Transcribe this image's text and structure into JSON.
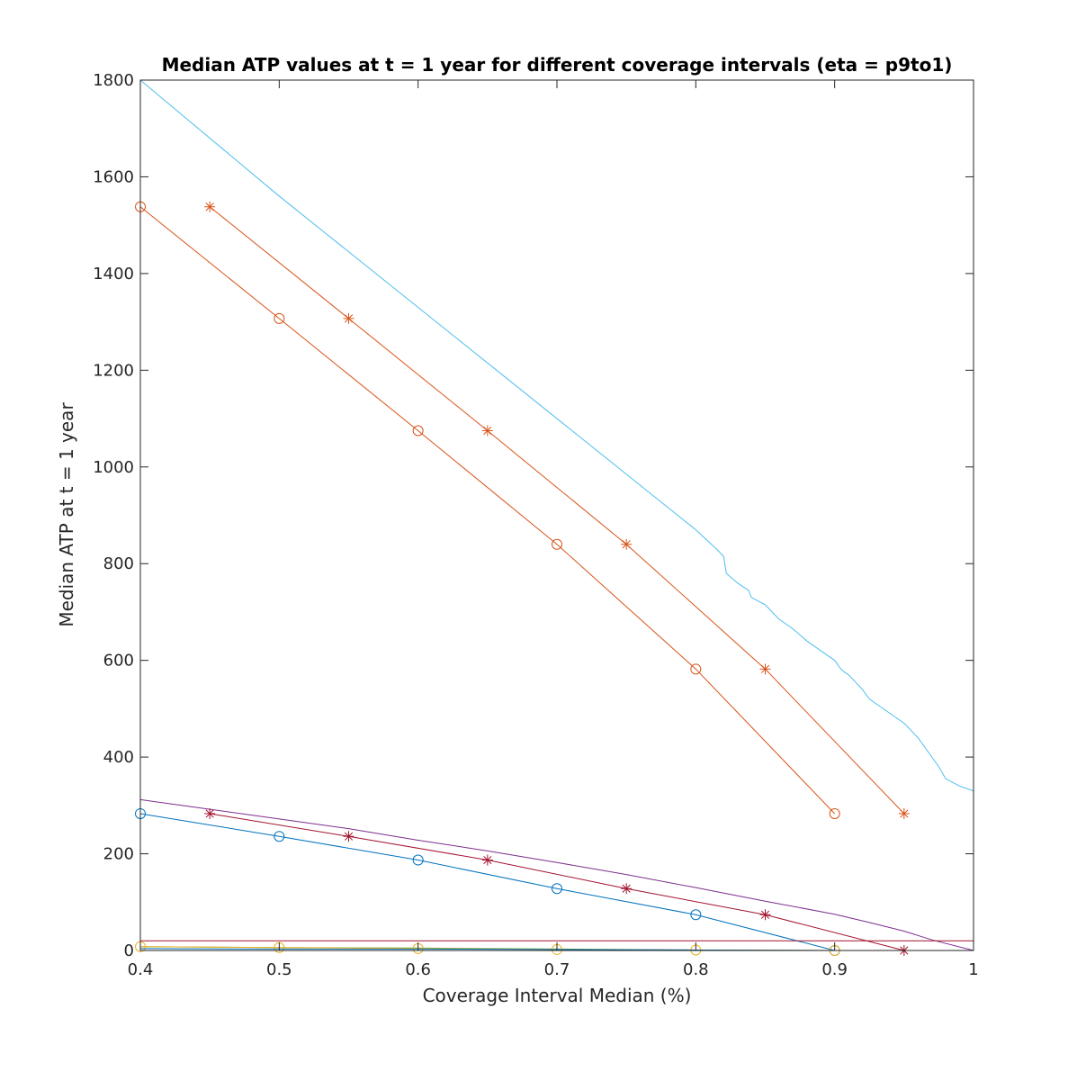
{
  "chart_data": {
    "type": "line",
    "title": "Median ATP values at t = 1 year for different coverage intervals (eta = p9to1)",
    "xlabel": "Coverage Interval Median (%)",
    "ylabel": "Median ATP at t = 1 year",
    "xlim": [
      0.4,
      1
    ],
    "ylim": [
      0,
      1800
    ],
    "xticks": [
      0.4,
      0.5,
      0.6,
      0.7,
      0.8,
      0.9,
      1
    ],
    "xtick_labels": [
      "0.4",
      "0.5",
      "0.6",
      "0.7",
      "0.8",
      "0.9",
      "1"
    ],
    "yticks": [
      0,
      200,
      400,
      600,
      800,
      1000,
      1200,
      1400,
      1600,
      1800
    ],
    "ytick_labels": [
      "0",
      "200",
      "400",
      "600",
      "800",
      "1000",
      "1200",
      "1400",
      "1600",
      "1800"
    ],
    "grid": false,
    "box": true,
    "series": [
      {
        "color": "#4DBEEE",
        "marker": "none",
        "x": [
          0.4,
          0.5,
          0.6,
          0.7,
          0.75,
          0.8,
          0.815,
          0.82,
          0.822,
          0.83,
          0.838,
          0.84,
          0.85,
          0.86,
          0.87,
          0.88,
          0.89,
          0.9,
          0.905,
          0.91,
          0.915,
          0.92,
          0.925,
          0.94,
          0.95,
          0.96,
          0.965,
          0.97,
          0.975,
          0.98,
          0.99,
          1.0
        ],
        "y": [
          1800,
          1560,
          1330,
          1100,
          985,
          870,
          830,
          815,
          780,
          760,
          745,
          730,
          715,
          685,
          665,
          640,
          620,
          600,
          580,
          570,
          555,
          540,
          520,
          490,
          470,
          440,
          420,
          400,
          380,
          355,
          340,
          330
        ]
      },
      {
        "color": "#D95319",
        "marker": "o",
        "x": [
          0.4,
          0.5,
          0.6,
          0.7,
          0.8,
          0.9
        ],
        "y": [
          1538,
          1307,
          1075,
          840,
          582,
          283
        ]
      },
      {
        "color": "#D95319",
        "marker": "*",
        "x": [
          0.45,
          0.55,
          0.65,
          0.75,
          0.85,
          0.95
        ],
        "y": [
          1538,
          1307,
          1075,
          840,
          582,
          283
        ]
      },
      {
        "color": "#7E2F8E",
        "marker": "none",
        "x": [
          0.4,
          0.45,
          0.5,
          0.55,
          0.6,
          0.65,
          0.7,
          0.75,
          0.8,
          0.85,
          0.9,
          0.925,
          0.95,
          0.97,
          1.0
        ],
        "y": [
          312,
          292,
          272,
          252,
          228,
          206,
          182,
          157,
          130,
          102,
          75,
          58,
          40,
          22,
          0
        ]
      },
      {
        "color": "#A2142F",
        "marker": "*",
        "x": [
          0.45,
          0.55,
          0.65,
          0.75,
          0.85,
          0.95
        ],
        "y": [
          283,
          236,
          187,
          128,
          74,
          0
        ]
      },
      {
        "color": "#0072BD",
        "marker": "o",
        "x": [
          0.4,
          0.5,
          0.6,
          0.7,
          0.8,
          0.9
        ],
        "y": [
          283,
          236,
          187,
          128,
          74,
          0
        ]
      },
      {
        "color": "#A2142F",
        "marker": "none",
        "x": [
          0.4,
          1.0
        ],
        "y": [
          20,
          20
        ]
      },
      {
        "color": "#77AC30",
        "marker": "none",
        "x": [
          0.4,
          0.5,
          0.6,
          0.7,
          0.8,
          0.9,
          1.0
        ],
        "y": [
          8,
          6,
          5,
          3,
          1,
          0,
          0
        ]
      },
      {
        "color": "#EDB120",
        "marker": "o",
        "x": [
          0.4,
          0.5,
          0.6,
          0.7,
          0.8,
          0.9
        ],
        "y": [
          8,
          6,
          4,
          2,
          1,
          0
        ]
      },
      {
        "color": "#0072BD",
        "marker": "none",
        "x": [
          0.4,
          0.5,
          0.6,
          0.7,
          0.8,
          0.9,
          1.0
        ],
        "y": [
          4,
          3,
          3,
          2,
          1,
          0,
          0
        ]
      }
    ]
  }
}
